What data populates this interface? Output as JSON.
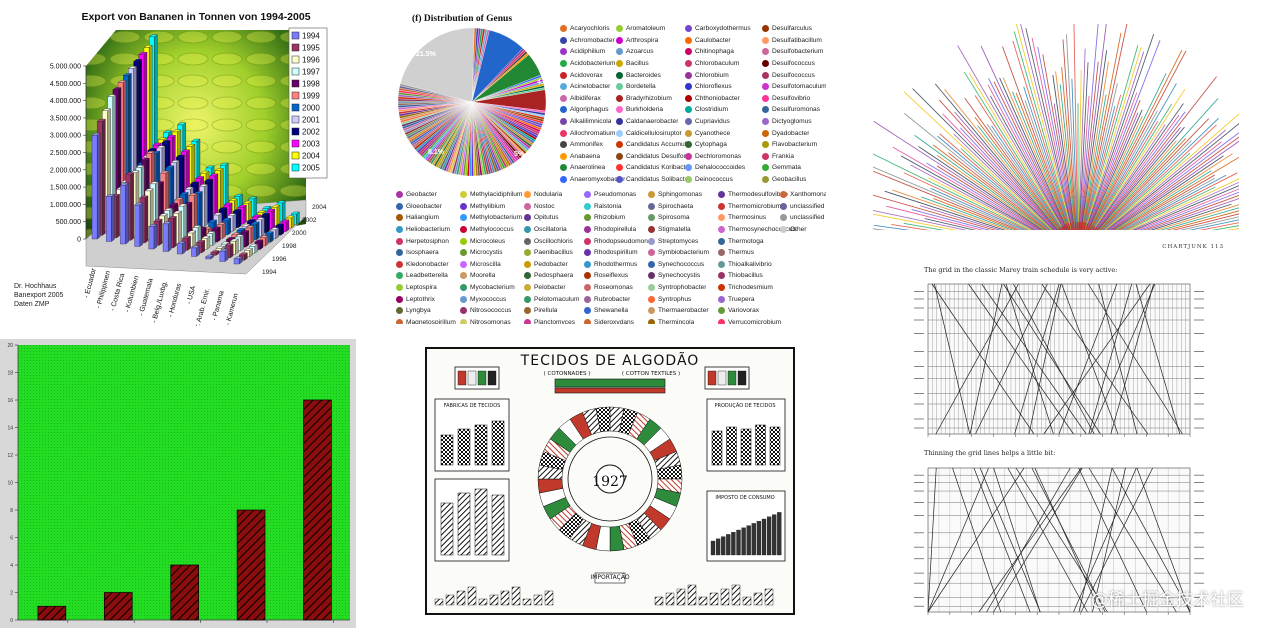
{
  "watermark": "@稀土掘金技术社区",
  "chart_data": [
    {
      "type": "bar",
      "title": "Export von Bananen in Tonnen von 1994-2005",
      "categories": [
        "Ecuador",
        "Philippinen",
        "Costa Rica",
        "Kolumbien",
        "Guatemala",
        "Belg./Luxbg.",
        "Honduras",
        "USA",
        "Ver. Arab. Emir.",
        "Panama",
        "Kamerun"
      ],
      "category_labels": [
        "- Ecuador",
        "- Philippinen",
        "- Costa Rica",
        "- Kolumbien",
        "- Guatemala",
        "- Belg./Luxbg.",
        "- Honduras",
        "- USA",
        "Ver. Arab. Emir.",
        "- Panama",
        "- Kamerun"
      ],
      "ylim": [
        0,
        5000000
      ],
      "yticks": [
        "5.000.000",
        "4.500.000",
        "4.000.000",
        "3.500.000",
        "3.000.000",
        "2.500.000",
        "2.000.000",
        "1.500.000",
        "1.000.000",
        "500.000",
        "0"
      ],
      "depth_ticks": [
        "2004",
        "2002",
        "2000",
        "1998",
        "1996",
        "1994"
      ],
      "source": [
        "Dr. Hochhaus",
        "Banexport 2005",
        "Daten ZMP"
      ],
      "series": [
        {
          "name": "1994",
          "color": "#7b7bff",
          "values": [
            3000000,
            1300000,
            1700000,
            1200000,
            650000,
            800000,
            300000,
            250000,
            60000,
            300000,
            150000
          ]
        },
        {
          "name": "1995",
          "color": "#9a3366",
          "values": [
            3300000,
            1200000,
            1900000,
            1300000,
            700000,
            850000,
            350000,
            300000,
            80000,
            350000,
            160000
          ]
        },
        {
          "name": "1996",
          "color": "#ffffcc",
          "values": [
            3500000,
            1300000,
            1850000,
            1400000,
            750000,
            900000,
            400000,
            320000,
            100000,
            380000,
            180000
          ]
        },
        {
          "name": "1997",
          "color": "#ccffff",
          "values": [
            3800000,
            1400000,
            1900000,
            1500000,
            800000,
            1000000,
            450000,
            350000,
            120000,
            400000,
            200000
          ]
        },
        {
          "name": "1998",
          "color": "#660066",
          "values": [
            3900000,
            1450000,
            2000000,
            1400000,
            850000,
            950000,
            300000,
            380000,
            150000,
            420000,
            220000
          ]
        },
        {
          "name": "1999",
          "color": "#ff8080",
          "values": [
            4000000,
            1500000,
            2100000,
            1600000,
            900000,
            1100000,
            200000,
            400000,
            180000,
            450000,
            240000
          ]
        },
        {
          "name": "2000",
          "color": "#0066cc",
          "values": [
            4100000,
            1600000,
            2000000,
            1650000,
            950000,
            1050000,
            300000,
            420000,
            200000,
            460000,
            250000
          ]
        },
        {
          "name": "2001",
          "color": "#ccccff",
          "values": [
            4200000,
            1700000,
            2050000,
            1700000,
            1000000,
            1150000,
            400000,
            450000,
            220000,
            480000,
            260000
          ]
        },
        {
          "name": "2002",
          "color": "#000080",
          "values": [
            4300000,
            1800000,
            2100000,
            1750000,
            1050000,
            1200000,
            450000,
            470000,
            250000,
            500000,
            270000
          ]
        },
        {
          "name": "2003",
          "color": "#ff00ff",
          "values": [
            4400000,
            1850000,
            2150000,
            1800000,
            1100000,
            1250000,
            480000,
            490000,
            280000,
            520000,
            280000
          ]
        },
        {
          "name": "2004",
          "color": "#ffff00",
          "values": [
            4500000,
            1900000,
            2200000,
            1850000,
            1150000,
            1300000,
            500000,
            500000,
            300000,
            530000,
            290000
          ]
        },
        {
          "name": "2005",
          "color": "#00ffff",
          "values": [
            4700000,
            2000000,
            2300000,
            1900000,
            1200000,
            1350000,
            520000,
            520000,
            320000,
            550000,
            300000
          ]
        }
      ]
    },
    {
      "type": "pie",
      "title": "(f) Distribution of Genus",
      "labels_shown": [
        "21.5%",
        "4.5%",
        "8.1%",
        "5%"
      ],
      "values": [
        21.5,
        4.5,
        8.1,
        5
      ],
      "legend": [
        {
          "label": "Acaryochloris",
          "color": "#e07020"
        },
        {
          "label": "Achromobacter",
          "color": "#3344aa"
        },
        {
          "label": "Acidiphilium",
          "color": "#9933cc"
        },
        {
          "label": "Acidobacterium",
          "color": "#22aa44"
        },
        {
          "label": "Acidovorax",
          "color": "#cc2222"
        },
        {
          "label": "Acinetobacter",
          "color": "#55aadd"
        },
        {
          "label": "Albidiferax",
          "color": "#cc66aa"
        },
        {
          "label": "Algoriphagus",
          "color": "#2266cc"
        },
        {
          "label": "Alkalilimnicola",
          "color": "#7744aa"
        },
        {
          "label": "Allochromatium",
          "color": "#ee3366"
        },
        {
          "label": "Ammonifex",
          "color": "#444444"
        },
        {
          "label": "Anabaena",
          "color": "#ff9900"
        },
        {
          "label": "Anaerolinea",
          "color": "#228833"
        },
        {
          "label": "Anaeromyxobacter",
          "color": "#3366ff"
        },
        {
          "label": "Aromatoleum",
          "color": "#99cc33"
        },
        {
          "label": "Arthrospira",
          "color": "#cc00cc"
        },
        {
          "label": "Azoarcus",
          "color": "#6699cc"
        },
        {
          "label": "Bacillus",
          "color": "#ccaa00"
        },
        {
          "label": "Bacteroides",
          "color": "#006633"
        },
        {
          "label": "Bordetella",
          "color": "#66cc99"
        },
        {
          "label": "Bradyrhizobium",
          "color": "#aa2222"
        },
        {
          "label": "Burkholderia",
          "color": "#ff66cc"
        },
        {
          "label": "Caldanaerobacter",
          "color": "#333399"
        },
        {
          "label": "Caldicellulosiruptor",
          "color": "#99ccff"
        },
        {
          "label": "Candidatus Accumulib",
          "color": "#cc3300"
        },
        {
          "label": "Candidatus Desulforu",
          "color": "#8b4513"
        },
        {
          "label": "Candidatus Koribacter",
          "color": "#ff3333"
        },
        {
          "label": "Candidatus Solibacter",
          "color": "#5555cc"
        },
        {
          "label": "Carboxydothermus",
          "color": "#7744cc"
        },
        {
          "label": "Caulobacter",
          "color": "#ff6600"
        },
        {
          "label": "Chitinophaga",
          "color": "#cc0066"
        },
        {
          "label": "Chlorobaculum",
          "color": "#cc3366"
        },
        {
          "label": "Chlorobium",
          "color": "#993399"
        },
        {
          "label": "Chloroflexus",
          "color": "#3333cc"
        },
        {
          "label": "Chthoniobacter",
          "color": "#aa0000"
        },
        {
          "label": "Clostridium",
          "color": "#00aa99"
        },
        {
          "label": "Cupriavidus",
          "color": "#6666aa"
        },
        {
          "label": "Cyanothece",
          "color": "#cc9933"
        },
        {
          "label": "Cytophaga",
          "color": "#336633"
        },
        {
          "label": "Dechloromonas",
          "color": "#cc3399"
        },
        {
          "label": "Dehalococcoides",
          "color": "#6699ff"
        },
        {
          "label": "Deinococcus",
          "color": "#99cc66"
        },
        {
          "label": "Desulfarculus",
          "color": "#993300"
        },
        {
          "label": "Desulfatibacillum",
          "color": "#ff9966"
        },
        {
          "label": "Desulfobacterium",
          "color": "#cc6699"
        },
        {
          "label": "Desulfococcus",
          "color": "#660000"
        },
        {
          "label": "Desulfococcus",
          "color": "#aa3366"
        },
        {
          "label": "Desulfotomaculum",
          "color": "#cc33cc"
        },
        {
          "label": "Desulfovibrio",
          "color": "#ff3399"
        },
        {
          "label": "Desulfuromonas",
          "color": "#336699"
        },
        {
          "label": "Dictyoglomus",
          "color": "#9966cc"
        },
        {
          "label": "Dyadobacter",
          "color": "#cc6600"
        },
        {
          "label": "Flavobacterium",
          "color": "#aa9900"
        },
        {
          "label": "Frankia",
          "color": "#cc3366"
        },
        {
          "label": "Gemmata",
          "color": "#33aa33"
        },
        {
          "label": "Geobacillus",
          "color": "#999933"
        },
        {
          "label": "Geobacter",
          "color": "#aa33aa"
        },
        {
          "label": "Gloeobacter",
          "color": "#3366aa"
        },
        {
          "label": "Haliangium",
          "color": "#aa5500"
        },
        {
          "label": "Heliobacterium",
          "color": "#3399cc"
        },
        {
          "label": "Herpetosiphon",
          "color": "#cc3366"
        },
        {
          "label": "Isosphaera",
          "color": "#336699"
        },
        {
          "label": "Kledonobacter",
          "color": "#cc3333"
        },
        {
          "label": "Leadbetterella",
          "color": "#33aa66"
        },
        {
          "label": "Leptospira",
          "color": "#99cc33"
        },
        {
          "label": "Leptothrix",
          "color": "#990066"
        },
        {
          "label": "Lyngbya",
          "color": "#666633"
        },
        {
          "label": "Magnetospirillum",
          "color": "#cc6633"
        },
        {
          "label": "Methylacidiphilum",
          "color": "#cccc33"
        },
        {
          "label": "Methylibium",
          "color": "#6633cc"
        },
        {
          "label": "Methylobacterium",
          "color": "#3399ff"
        },
        {
          "label": "Methylococcus",
          "color": "#cc0033"
        },
        {
          "label": "Microcoleus",
          "color": "#99cc00"
        },
        {
          "label": "Microcystis",
          "color": "#669933"
        },
        {
          "label": "Microscilla",
          "color": "#cc66ff"
        },
        {
          "label": "Moorella",
          "color": "#cc9966"
        },
        {
          "label": "Mycobacterium",
          "color": "#339966"
        },
        {
          "label": "Myxococcus",
          "color": "#6699cc"
        },
        {
          "label": "Nitrosococcus",
          "color": "#993366"
        },
        {
          "label": "Nitrosomonas",
          "color": "#cccc66"
        },
        {
          "label": "Nodularia",
          "color": "#ff9933"
        },
        {
          "label": "Nostoc",
          "color": "#cc6699"
        },
        {
          "label": "Opitutus",
          "color": "#663399"
        },
        {
          "label": "Oscillatoria",
          "color": "#3399aa"
        },
        {
          "label": "Oscillochloris",
          "color": "#666666"
        },
        {
          "label": "Paenibacillus",
          "color": "#99aa33"
        },
        {
          "label": "Pedobacter",
          "color": "#cc9900"
        },
        {
          "label": "Pedosphaera",
          "color": "#336633"
        },
        {
          "label": "Pelobacter",
          "color": "#ccaa33"
        },
        {
          "label": "Pelotomaculum",
          "color": "#339966"
        },
        {
          "label": "Pirellula",
          "color": "#996633"
        },
        {
          "label": "Planctomyces",
          "color": "#cc3399"
        },
        {
          "label": "Pseudomonas",
          "color": "#9966ff"
        },
        {
          "label": "Ralstonia",
          "color": "#33cccc"
        },
        {
          "label": "Rhizobium",
          "color": "#669933"
        },
        {
          "label": "Rhodopirellula",
          "color": "#993399"
        },
        {
          "label": "Rhodopseudomonas",
          "color": "#cc3366"
        },
        {
          "label": "Rhodospirillum",
          "color": "#6633aa"
        },
        {
          "label": "Rhodothermus",
          "color": "#3399cc"
        },
        {
          "label": "Roseiflexus",
          "color": "#aa3300"
        },
        {
          "label": "Roseomonas",
          "color": "#cc6666"
        },
        {
          "label": "Rubrobacter",
          "color": "#996699"
        },
        {
          "label": "Shewanella",
          "color": "#3366cc"
        },
        {
          "label": "Sideroxydans",
          "color": "#cc6633"
        },
        {
          "label": "Sphingomonas",
          "color": "#cc9933"
        },
        {
          "label": "Spirochaeta",
          "color": "#666699"
        },
        {
          "label": "Spirosoma",
          "color": "#669966"
        },
        {
          "label": "Stigmatella",
          "color": "#993333"
        },
        {
          "label": "Streptomyces",
          "color": "#9999cc"
        },
        {
          "label": "Symbiobacterium",
          "color": "#cc6699"
        },
        {
          "label": "Synechococcus",
          "color": "#3366aa"
        },
        {
          "label": "Synechocystis",
          "color": "#663366"
        },
        {
          "label": "Syntrophobacter",
          "color": "#99cc99"
        },
        {
          "label": "Syntrophus",
          "color": "#ff6633"
        },
        {
          "label": "Thermaerobacter",
          "color": "#cc9966"
        },
        {
          "label": "Thermincola",
          "color": "#996600"
        },
        {
          "label": "Thermodesulfovibrio",
          "color": "#663399"
        },
        {
          "label": "Thermomicrobium",
          "color": "#cc3333"
        },
        {
          "label": "Thermosinus",
          "color": "#ff9966"
        },
        {
          "label": "Thermosynechococcus",
          "color": "#cc66cc"
        },
        {
          "label": "Thermotoga",
          "color": "#336699"
        },
        {
          "label": "Thermus",
          "color": "#996666"
        },
        {
          "label": "Thioalkalivibrio",
          "color": "#669999"
        },
        {
          "label": "Thiobacillus",
          "color": "#993366"
        },
        {
          "label": "Trichodesmium",
          "color": "#cc3300"
        },
        {
          "label": "Truepera",
          "color": "#9966cc"
        },
        {
          "label": "Variovorax",
          "color": "#669933"
        },
        {
          "label": "Verrucomicrobium",
          "color": "#ff3366"
        },
        {
          "label": "Xanthomonas",
          "color": "#cc6633"
        },
        {
          "label": "unclassified from Bacteria",
          "color": "#666699"
        },
        {
          "label": "unclassified from Deltaproteo",
          "color": "#999999"
        },
        {
          "label": "Other",
          "color": "#cccccc"
        }
      ]
    },
    {
      "type": "bar",
      "categories": [
        "1",
        "2",
        "3",
        "4",
        "5"
      ],
      "values": [
        1,
        2,
        4,
        8,
        16
      ],
      "ylim": [
        0,
        20
      ],
      "colors": {
        "background": "#22dd22",
        "bar": "#8b0d0d",
        "hatch": "#000000"
      }
    },
    {
      "type": "line",
      "title": "The grid in the classic Marey train schedule is very active:",
      "subtitle": "Thinning the grid lines helps a little bit:",
      "header": "CHARTJUNK   113"
    }
  ],
  "cotton": {
    "title_main": "TECIDOS DE ALGODÃO",
    "subtitle_left": "( COTONNADES )",
    "subtitle_right": "( COTTON TEXTILES )",
    "year": "1927",
    "panel_left_top": "FABRICAS DE TECIDOS",
    "panel_right_top": "PRODUÇÃO DE TECIDOS",
    "panel_right_mid": "IMPOSTO DE CONSUMO",
    "bottom_label": "IMPORTAÇÃO"
  }
}
